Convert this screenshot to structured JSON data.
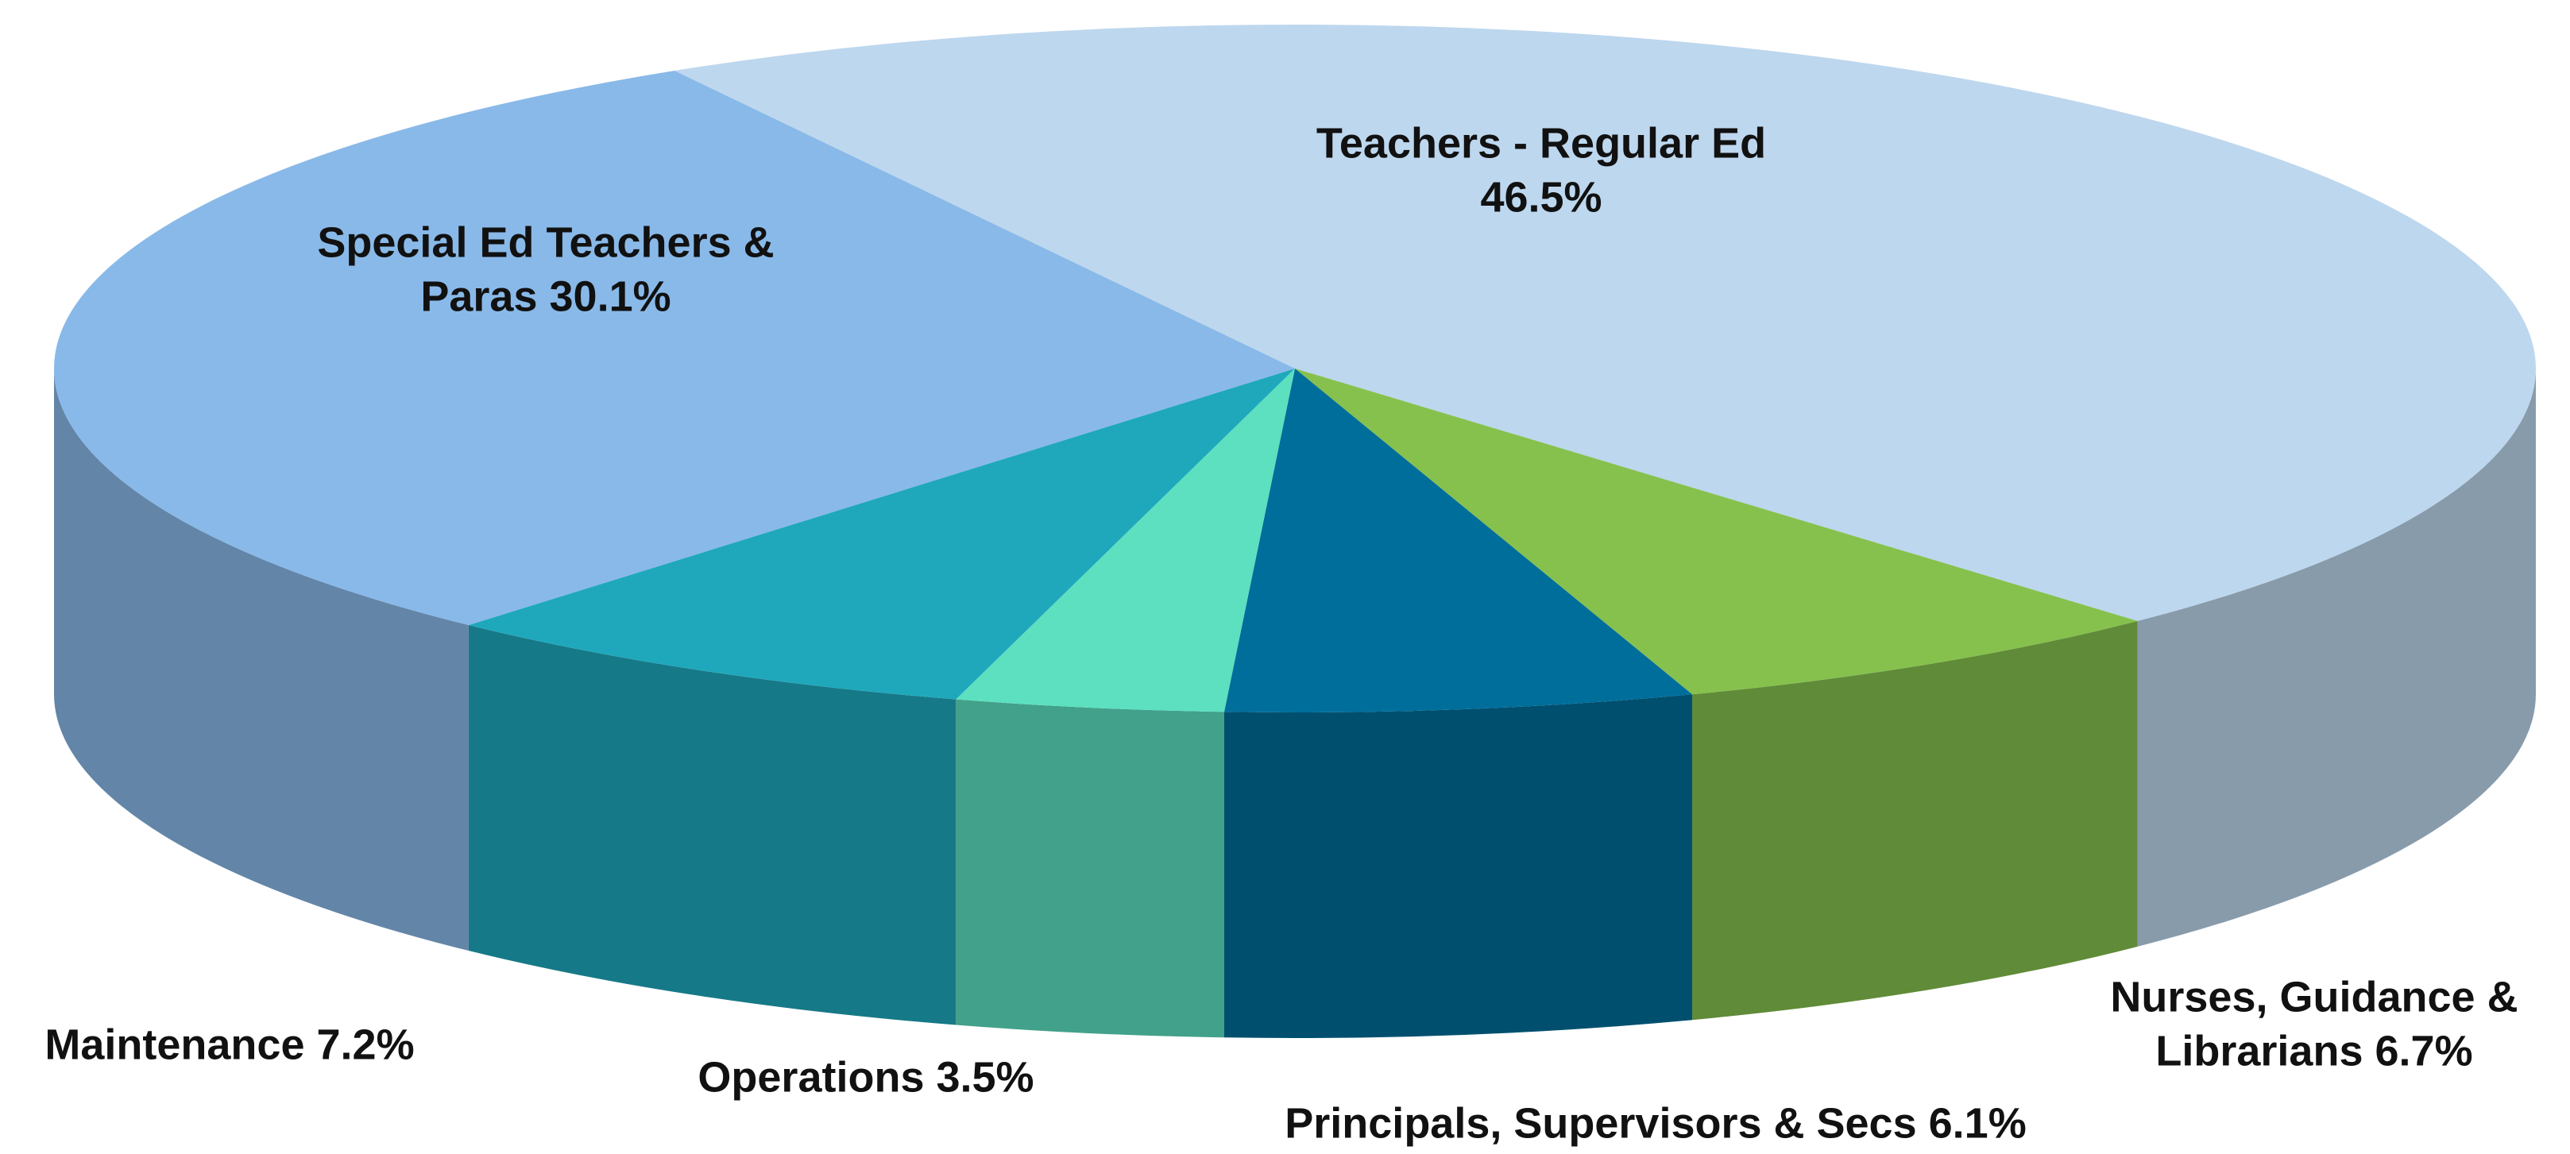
{
  "chart_data": {
    "type": "pie3d",
    "categories": [
      "Teachers - Regular Ed",
      "Nurses, Guidance & Librarians",
      "Principals, Supervisors & Secs",
      "Operations",
      "Maintenance",
      "Special Ed Teachers & Paras"
    ],
    "values": [
      46.5,
      6.7,
      6.1,
      3.5,
      7.2,
      30.1
    ],
    "value_labels": [
      "46.5%",
      "6.7%",
      "6.1%",
      "3.5%",
      "7.2%",
      "30.1%"
    ],
    "colors": [
      "#bdd7ee",
      "#86c14e",
      "#006e9a",
      "#5ce0c0",
      "#1fa8bc",
      "#89b9e8"
    ]
  }
}
